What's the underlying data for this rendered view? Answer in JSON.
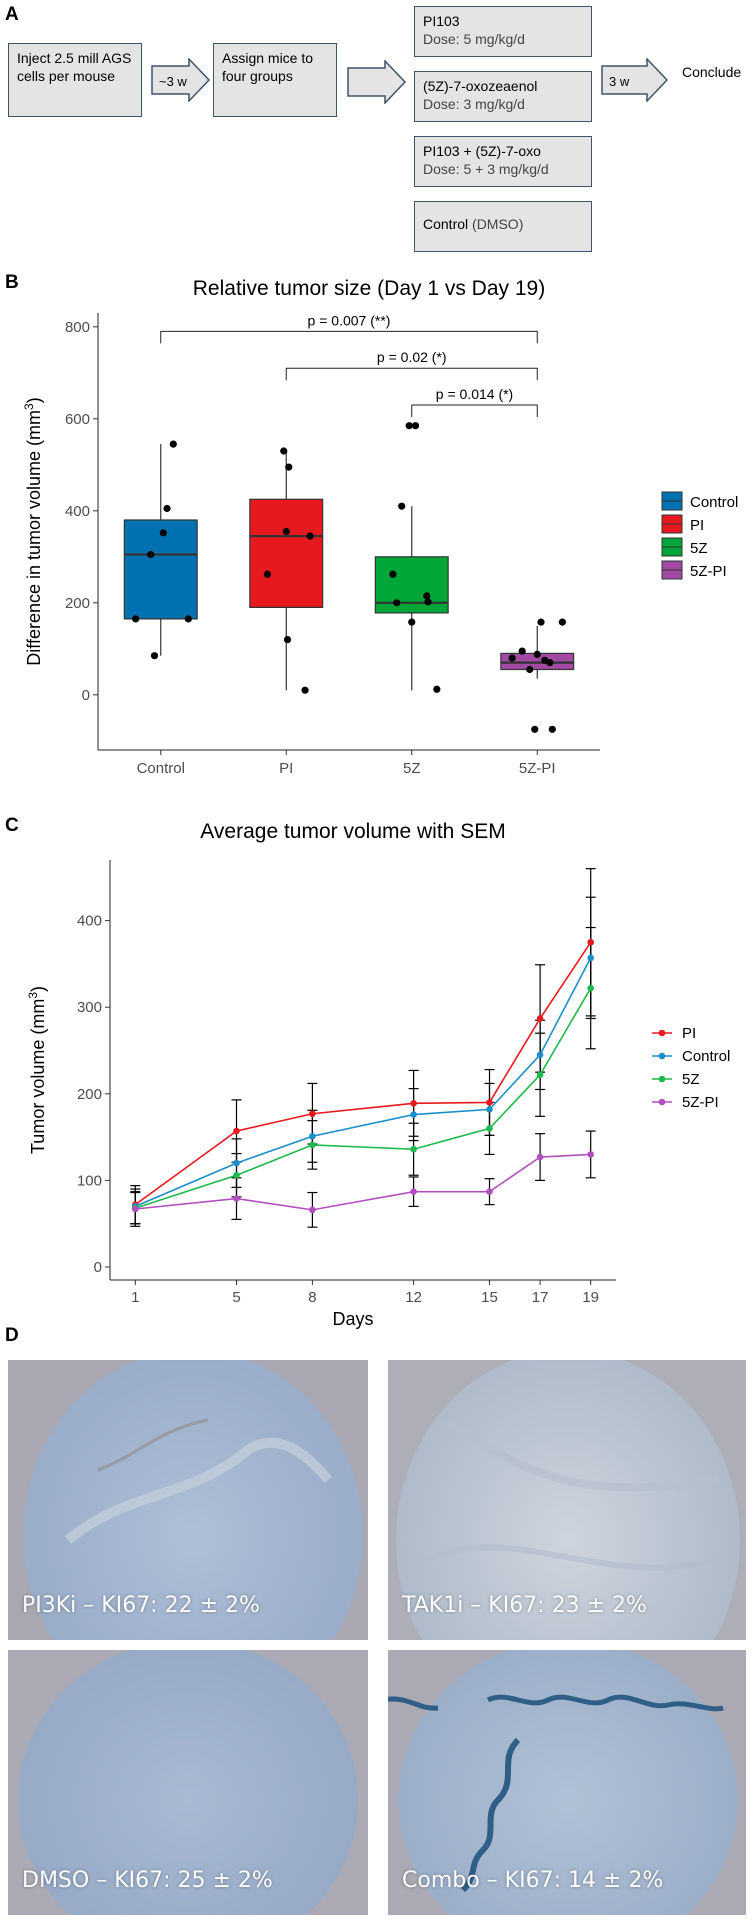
{
  "panels": {
    "a": "A",
    "b": "B",
    "c": "C",
    "d": "D"
  },
  "flow": {
    "inject": "Inject 2.5 mill AGS cells per mouse",
    "wait1": "~3 w",
    "assign": "Assign mice to four groups",
    "groups": [
      {
        "name": "PI103",
        "dose": "Dose: 5 mg/kg/d"
      },
      {
        "name": "(5Z)-7-oxozeaenol",
        "dose": "Dose: 3 mg/kg/d"
      },
      {
        "name": "PI103 + (5Z)-7-oxo",
        "dose": "Dose: 5 + 3 mg/kg/d"
      },
      {
        "name": "Control",
        "name_suffix": "(DMSO)"
      }
    ],
    "wait2": "3 w",
    "conclude": "Conclude"
  },
  "chart_data": [
    {
      "type": "box",
      "title": "Relative tumor size (Day 1 vs Day 19)",
      "xlabel": "",
      "ylabel": "Difference in tumor volume",
      "ylabel_unit": "mm",
      "ylabel_exp": "3",
      "ylim": [
        -120,
        830
      ],
      "yticks": [
        0,
        200,
        400,
        600,
        800
      ],
      "categories": [
        "Control",
        "PI",
        "5Z",
        "5Z-PI"
      ],
      "colors": [
        "#0072b2",
        "#e8191e",
        "#00a637",
        "#a24aa3"
      ],
      "legend": [
        "Control",
        "PI",
        "5Z",
        "5Z-PI"
      ],
      "boxes": [
        {
          "min": 85,
          "q1": 165,
          "median": 305,
          "q3": 380,
          "max": 545
        },
        {
          "min": 10,
          "q1": 190,
          "median": 345,
          "q3": 425,
          "max": 530
        },
        {
          "min": 10,
          "q1": 178,
          "median": 200,
          "q3": 300,
          "max": 410
        },
        {
          "min": 35,
          "q1": 55,
          "median": 70,
          "q3": 90,
          "max": 150
        }
      ],
      "points": [
        [
          [
            -0.2,
            165
          ],
          [
            -0.08,
            305
          ],
          [
            0.02,
            352
          ],
          [
            0.05,
            405
          ],
          [
            0.1,
            545
          ],
          [
            -0.05,
            85
          ],
          [
            0.22,
            165
          ]
        ],
        [
          [
            -0.15,
            262
          ],
          [
            0.0,
            355
          ],
          [
            0.02,
            495
          ],
          [
            -0.02,
            530
          ],
          [
            0.19,
            345
          ],
          [
            0.01,
            120
          ],
          [
            0.15,
            10
          ]
        ],
        [
          [
            -0.15,
            262
          ],
          [
            -0.08,
            410
          ],
          [
            -0.02,
            585
          ],
          [
            0.03,
            585
          ],
          [
            0.12,
            215
          ],
          [
            -0.12,
            200
          ],
          [
            0.0,
            158
          ],
          [
            0.13,
            202
          ],
          [
            0.2,
            12
          ]
        ],
        [
          [
            -0.2,
            80
          ],
          [
            -0.12,
            95
          ],
          [
            -0.06,
            55
          ],
          [
            0.03,
            158
          ],
          [
            0.06,
            75
          ],
          [
            0.2,
            158
          ],
          [
            0.0,
            88
          ],
          [
            0.1,
            70
          ],
          [
            -0.02,
            -75
          ],
          [
            0.12,
            -75
          ]
        ]
      ],
      "brackets": [
        {
          "from": 0,
          "to": 3,
          "y": 790,
          "label": "p = 0.007 (**)"
        },
        {
          "from": 1,
          "to": 3,
          "y": 710,
          "label": "p = 0.02 (*)"
        },
        {
          "from": 2,
          "to": 3,
          "y": 630,
          "label": "p = 0.014 (*)"
        }
      ]
    },
    {
      "type": "line",
      "title": "Average tumor volume with SEM",
      "xlabel": "Days",
      "ylabel": "Tumor volume",
      "ylabel_unit": "mm",
      "ylabel_exp": "3",
      "ylim": [
        -15,
        470
      ],
      "yticks": [
        0,
        100,
        200,
        300,
        400
      ],
      "x": [
        1,
        5,
        8,
        12,
        15,
        17,
        19
      ],
      "xlim": [
        0,
        20
      ],
      "legend": [
        "PI",
        "Control",
        "5Z",
        "5Z-PI"
      ],
      "series": [
        {
          "name": "PI",
          "color": "#e8191e",
          "values": [
            72,
            157,
            177,
            189,
            190,
            287,
            375
          ],
          "err": [
            22,
            36,
            35,
            38,
            38,
            62,
            85
          ]
        },
        {
          "name": "Control",
          "color": "#1a8ec9",
          "values": [
            70,
            120,
            151,
            176,
            182,
            245,
            357
          ],
          "err": [
            20,
            28,
            30,
            30,
            30,
            40,
            70
          ]
        },
        {
          "name": "5Z",
          "color": "#1db94a",
          "values": [
            68,
            106,
            141,
            136,
            160,
            222,
            322
          ],
          "err": [
            18,
            25,
            28,
            30,
            30,
            48,
            70
          ]
        },
        {
          "name": "5Z-PI",
          "color": "#b24fbf",
          "values": [
            67,
            79,
            66,
            87,
            87,
            127,
            130
          ],
          "err": [
            20,
            24,
            20,
            17,
            15,
            27,
            27
          ]
        }
      ]
    }
  ],
  "micrographs": [
    {
      "label": "PI3Ki – KI67: 22 ± 2%"
    },
    {
      "label": "TAK1i – KI67: 23 ± 2%"
    },
    {
      "label": "DMSO – KI67: 25 ± 2%"
    },
    {
      "label": "Combo – KI67: 14 ± 2%"
    }
  ],
  "colors": {
    "box_border": "#3f5469",
    "box_fill": "#e4e4e4",
    "tissue": "#a5b7cf",
    "background_slide": "#a6a6b1"
  }
}
